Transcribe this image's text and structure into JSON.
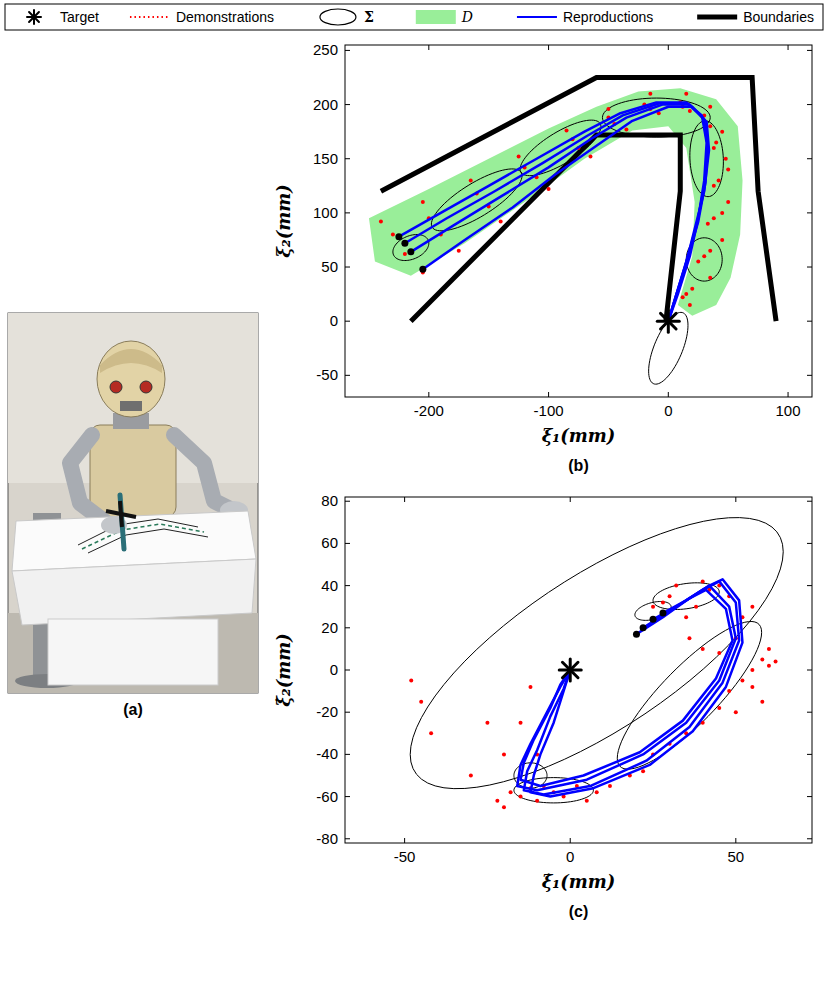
{
  "legend": {
    "position": "top",
    "entries": [
      {
        "name": "Target",
        "marker": "asterisk",
        "color": "#000000"
      },
      {
        "name": "Demonstrations",
        "line_style": "dotted",
        "color": "#ff0000"
      },
      {
        "name": "Σ",
        "marker": "ellipse",
        "color": "#000000"
      },
      {
        "name": "D",
        "marker": "patch",
        "color": "#99ee99"
      },
      {
        "name": "Reproductions",
        "line_style": "solid",
        "color": "#0000ff"
      },
      {
        "name": "Boundaries",
        "line_style": "thick",
        "color": "#000000"
      }
    ]
  },
  "photo": {
    "caption": "(a)"
  },
  "chart_data": [
    {
      "type": "scatter",
      "caption": "(b)",
      "xlabel": "ξ₁(mm)",
      "ylabel": "ξ₂(mm)",
      "xlim": [
        -270,
        120
      ],
      "ylim": [
        -70,
        255
      ],
      "xticks": [
        -200,
        -100,
        0,
        100
      ],
      "yticks": [
        -50,
        0,
        50,
        100,
        150,
        200,
        250
      ],
      "target": {
        "x": 0,
        "y": 0
      },
      "region": {
        "x": [
          -250,
          -200,
          -150,
          -100,
          -60,
          -25,
          10,
          40,
          58,
          62,
          60,
          52,
          40,
          20,
          8,
          20,
          22,
          15,
          0,
          -30,
          -70,
          -120,
          -170,
          -215,
          -245
        ],
        "values": [
          95,
          122,
          150,
          178,
          198,
          212,
          215,
          205,
          180,
          130,
          80,
          40,
          15,
          5,
          15,
          60,
          110,
          160,
          180,
          176,
          150,
          110,
          72,
          42,
          55
        ]
      },
      "boundaries": [
        {
          "x": [
            -240,
            -60,
            70,
            75,
            90
          ],
          "values": [
            120,
            225,
            225,
            120,
            0
          ]
        },
        {
          "x": [
            -215,
            -60,
            10,
            10,
            -2
          ],
          "values": [
            0,
            172,
            172,
            120,
            0
          ]
        }
      ],
      "gaussians": [
        {
          "mean": [
            -215,
            68
          ],
          "cov": [
            [
              225,
              60
            ],
            [
              60,
              144
            ]
          ]
        },
        {
          "mean": [
            -160,
            112
          ],
          "cov": [
            [
              1433,
              846
            ],
            [
              846,
              817
            ]
          ]
        },
        {
          "mean": [
            -90,
            160
          ],
          "cov": [
            [
              1138,
              660
            ],
            [
              660,
              658
            ]
          ]
        },
        {
          "mean": [
            -10,
            188
          ],
          "cov": [
            [
              2025,
              0
            ],
            [
              0,
              324
            ]
          ]
        },
        {
          "mean": [
            32,
            150
          ],
          "cov": [
            [
              196,
              -40
            ],
            [
              -40,
              1225
            ]
          ]
        },
        {
          "mean": [
            30,
            57
          ],
          "cov": [
            [
              225,
              0
            ],
            [
              0,
              400
            ]
          ]
        },
        {
          "mean": [
            0,
            -25
          ],
          "cov": [
            [
              270,
              347
            ],
            [
              347,
              1099
            ]
          ]
        }
      ],
      "demonstrations": [
        {
          "x": [
            -230,
            -200,
            -160,
            -120,
            -80,
            -50,
            -20,
            10,
            30,
            40,
            42,
            38,
            30,
            15,
            0
          ],
          "values": [
            80,
            95,
            118,
            142,
            168,
            188,
            200,
            202,
            190,
            165,
            130,
            95,
            60,
            25,
            0
          ]
        },
        {
          "x": [
            -220,
            -190,
            -150,
            -110,
            -75,
            -45,
            -15,
            12,
            30,
            38,
            38,
            33,
            25,
            12,
            0
          ],
          "values": [
            62,
            80,
            106,
            133,
            160,
            182,
            196,
            198,
            185,
            160,
            125,
            90,
            55,
            22,
            0
          ]
        },
        {
          "x": [
            -205,
            -175,
            -140,
            -100,
            -65,
            -35,
            -8,
            18,
            35,
            48,
            50,
            45,
            35,
            18,
            0
          ],
          "values": [
            45,
            65,
            92,
            122,
            152,
            177,
            192,
            194,
            180,
            150,
            110,
            75,
            40,
            15,
            0
          ]
        },
        {
          "x": [
            -240,
            -205,
            -165,
            -125,
            -85,
            -50,
            -15,
            15,
            35,
            45,
            50,
            45,
            35,
            20,
            0
          ],
          "values": [
            92,
            110,
            130,
            152,
            176,
            196,
            210,
            210,
            198,
            175,
            140,
            100,
            65,
            30,
            0
          ]
        }
      ],
      "reproductions": [
        {
          "x": [
            -225,
            -190,
            -150,
            -110,
            -70,
            -40,
            -10,
            15,
            28,
            32,
            30,
            25,
            18,
            8,
            0
          ],
          "values": [
            78,
            100,
            125,
            150,
            175,
            192,
            202,
            202,
            190,
            165,
            130,
            95,
            60,
            25,
            0
          ]
        },
        {
          "x": [
            -215,
            -180,
            -140,
            -100,
            -65,
            -35,
            -5,
            18,
            30,
            33,
            30,
            24,
            15,
            6,
            0
          ],
          "values": [
            64,
            88,
            115,
            142,
            168,
            188,
            200,
            200,
            186,
            160,
            125,
            90,
            55,
            22,
            0
          ]
        },
        {
          "x": [
            -205,
            -170,
            -130,
            -95,
            -60,
            -30,
            0,
            20,
            32,
            34,
            30,
            22,
            14,
            5,
            0
          ],
          "values": [
            48,
            75,
            105,
            135,
            162,
            185,
            198,
            198,
            184,
            158,
            120,
            85,
            50,
            18,
            0
          ]
        },
        {
          "x": [
            -220,
            -185,
            -145,
            -105,
            -68,
            -38,
            -8,
            16,
            29,
            33,
            31,
            25,
            16,
            6,
            0
          ],
          "values": [
            72,
            95,
            120,
            146,
            171,
            190,
            201,
            201,
            188,
            162,
            128,
            92,
            58,
            22,
            0
          ]
        }
      ]
    },
    {
      "type": "scatter",
      "caption": "(c)",
      "xlabel": "ξ̇₁(mm)",
      "ylabel": "ξ̇₂(mm)",
      "xlim": [
        -68,
        73
      ],
      "ylim": [
        -82,
        82
      ],
      "xticks": [
        -50,
        0,
        50
      ],
      "yticks": [
        -80,
        -60,
        -40,
        -20,
        0,
        20,
        40,
        60,
        80
      ],
      "target": {
        "x": 0,
        "y": 0
      },
      "gaussians": [
        {
          "mean": [
            8,
            8
          ],
          "cov": [
            [
              3171,
              2706
            ],
            [
              2706,
              4129
            ]
          ]
        },
        {
          "mean": [
            36,
            -12
          ],
          "cov": [
            [
              475,
              650
            ],
            [
              650,
              1225
            ]
          ]
        },
        {
          "mean": [
            35,
            35
          ],
          "cov": [
            [
              100,
              20
            ],
            [
              20,
              40
            ]
          ]
        },
        {
          "mean": [
            25,
            28
          ],
          "cov": [
            [
              30,
              10
            ],
            [
              10,
              20
            ]
          ]
        },
        {
          "mean": [
            -5,
            -57
          ],
          "cov": [
            [
              144,
              0
            ],
            [
              0,
              36
            ]
          ]
        },
        {
          "mean": [
            -12,
            -50
          ],
          "cov": [
            [
              25,
              0
            ],
            [
              0,
              36
            ]
          ]
        }
      ],
      "demonstrations": [
        {
          "x": [
            -48,
            -45,
            -42,
            -30,
            -25,
            -22,
            -20,
            -18,
            -15,
            -12,
            -10,
            -8,
            -5,
            -2,
            2,
            5,
            8,
            12,
            18,
            22,
            25,
            30,
            35,
            40,
            45,
            48,
            52,
            55,
            58,
            60,
            62,
            55,
            58,
            50,
            45,
            50,
            52,
            48,
            45,
            42,
            40,
            38,
            35,
            30,
            28,
            25,
            32,
            55,
            60,
            40,
            36,
            -15,
            -10,
            -20,
            -12
          ],
          "values": [
            -5,
            -15,
            -30,
            -50,
            -25,
            -62,
            -65,
            -58,
            -60,
            -56,
            -62,
            -55,
            -58,
            -60,
            -55,
            -62,
            -58,
            -55,
            -50,
            -48,
            -40,
            -35,
            -30,
            -25,
            -18,
            -10,
            -5,
            0,
            5,
            2,
            4,
            -8,
            -15,
            -20,
            8,
            15,
            25,
            35,
            40,
            38,
            42,
            30,
            25,
            35,
            32,
            30,
            40,
            30,
            10,
            10,
            15,
            -25,
            -40,
            -40,
            -8
          ]
        }
      ],
      "reproductions": [
        {
          "x": [
            22,
            30,
            38,
            42,
            48,
            50,
            45,
            35,
            22,
            5,
            -10,
            -16,
            -15,
            -12,
            -7,
            -3,
            0
          ],
          "values": [
            20,
            28,
            36,
            40,
            30,
            15,
            -5,
            -25,
            -40,
            -52,
            -57,
            -55,
            -45,
            -35,
            -20,
            -8,
            0
          ]
        },
        {
          "x": [
            25,
            32,
            40,
            45,
            50,
            51,
            46,
            36,
            23,
            6,
            -8,
            -14,
            -13,
            -10,
            -6,
            -2,
            0
          ],
          "values": [
            24,
            30,
            38,
            42,
            32,
            14,
            -6,
            -27,
            -43,
            -55,
            -59,
            -57,
            -48,
            -38,
            -22,
            -9,
            0
          ]
        },
        {
          "x": [
            28,
            35,
            42,
            46,
            51,
            52,
            47,
            37,
            24,
            7,
            -6,
            -12,
            -11,
            -9,
            -5,
            -2,
            0
          ],
          "values": [
            27,
            33,
            40,
            43,
            33,
            13,
            -8,
            -29,
            -45,
            -56,
            -60,
            -58,
            -50,
            -40,
            -25,
            -10,
            0
          ]
        },
        {
          "x": [
            20,
            28,
            36,
            41,
            47,
            49,
            44,
            34,
            21,
            4,
            -9,
            -15,
            -14,
            -11,
            -6,
            -3,
            0
          ],
          "values": [
            17,
            25,
            34,
            38,
            29,
            14,
            -4,
            -24,
            -39,
            -50,
            -55,
            -52,
            -44,
            -33,
            -18,
            -7,
            0
          ]
        }
      ]
    }
  ]
}
